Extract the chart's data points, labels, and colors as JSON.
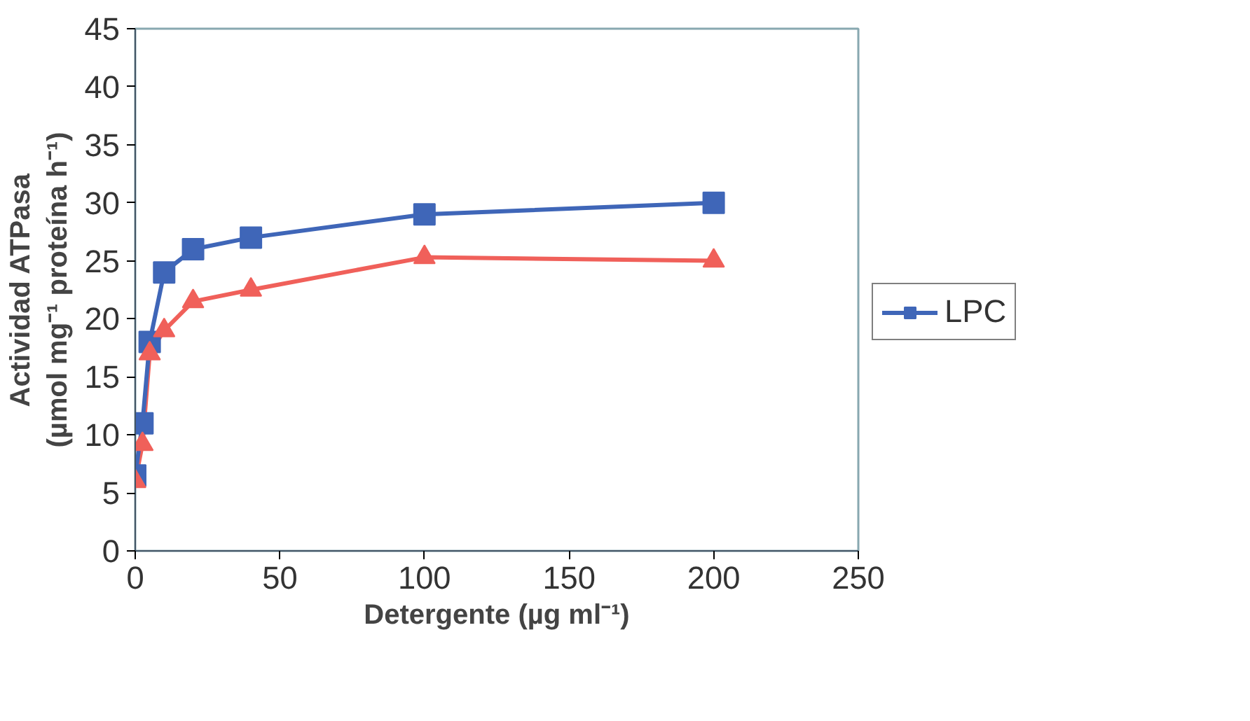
{
  "chart_data": {
    "type": "line",
    "xlabel": "Detergente (µg ml⁻¹)",
    "ylabel": "Actividad ATPasa\n(µmol mg⁻¹ proteína h⁻¹)",
    "series": [
      {
        "color": "#f0605a",
        "marker": "triangle",
        "x": [
          0,
          2.5,
          5,
          10,
          20,
          40,
          100,
          200
        ],
        "values": [
          6,
          9.2,
          17,
          19,
          21.5,
          22.5,
          25.3,
          25
        ]
      },
      {
        "name": "LPC",
        "color": "#3f66b8",
        "marker": "square",
        "x": [
          0,
          2.5,
          5,
          10,
          20,
          40,
          100,
          200
        ],
        "values": [
          6.5,
          11,
          18,
          24,
          26,
          27,
          29,
          30
        ]
      }
    ],
    "xlim": [
      0,
      250
    ],
    "xticks": [
      0,
      50,
      100,
      150,
      200,
      250
    ],
    "ylim": [
      0,
      45
    ],
    "yticks": [
      0,
      5,
      10,
      15,
      20,
      25,
      30,
      35,
      40,
      45
    ],
    "grid": false,
    "legend": "right",
    "line_style": "solid"
  }
}
